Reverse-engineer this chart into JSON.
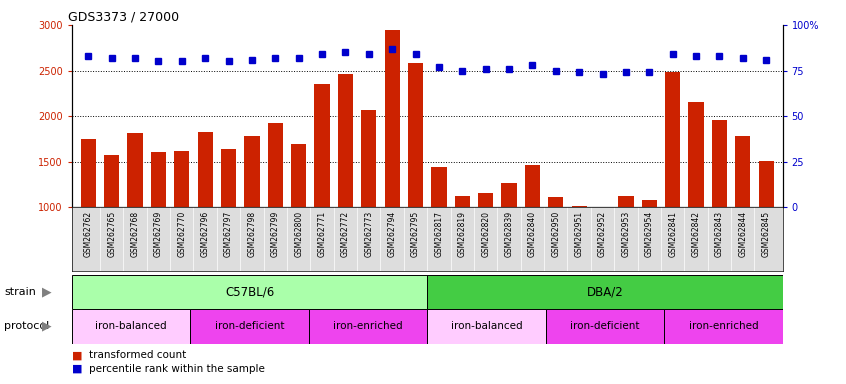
{
  "title": "GDS3373 / 27000",
  "samples": [
    "GSM262762",
    "GSM262765",
    "GSM262768",
    "GSM262769",
    "GSM262770",
    "GSM262796",
    "GSM262797",
    "GSM262798",
    "GSM262799",
    "GSM262800",
    "GSM262771",
    "GSM262772",
    "GSM262773",
    "GSM262794",
    "GSM262795",
    "GSM262817",
    "GSM262819",
    "GSM262820",
    "GSM262839",
    "GSM262840",
    "GSM262950",
    "GSM262951",
    "GSM262952",
    "GSM262953",
    "GSM262954",
    "GSM262841",
    "GSM262842",
    "GSM262843",
    "GSM262844",
    "GSM262845"
  ],
  "bar_values": [
    1750,
    1570,
    1810,
    1610,
    1620,
    1830,
    1640,
    1780,
    1920,
    1700,
    2350,
    2460,
    2070,
    2950,
    2580,
    1440,
    1130,
    1160,
    1270,
    1460,
    1110,
    1020,
    830,
    1130,
    1080,
    2480,
    2160,
    1960,
    1780,
    1510
  ],
  "percentile_values": [
    83,
    82,
    82,
    80,
    80,
    82,
    80,
    81,
    82,
    82,
    84,
    85,
    84,
    87,
    84,
    77,
    75,
    76,
    76,
    78,
    75,
    74,
    73,
    74,
    74,
    84,
    83,
    83,
    82,
    81
  ],
  "bar_color": "#cc2200",
  "percentile_color": "#0000cc",
  "ylim_left": [
    1000,
    3000
  ],
  "ylim_right": [
    0,
    100
  ],
  "yticks_left": [
    1000,
    1500,
    2000,
    2500,
    3000
  ],
  "yticks_right": [
    0,
    25,
    50,
    75,
    100
  ],
  "ytick_labels_right": [
    "0",
    "25",
    "50",
    "75",
    "100%"
  ],
  "grid_values": [
    1500,
    2000,
    2500
  ],
  "strain_groups": [
    {
      "label": "C57BL/6",
      "start": 0,
      "end": 15,
      "color": "#aaffaa"
    },
    {
      "label": "DBA/2",
      "start": 15,
      "end": 30,
      "color": "#44cc44"
    }
  ],
  "protocol_groups": [
    {
      "label": "iron-balanced",
      "start": 0,
      "end": 5,
      "color": "#ffccff"
    },
    {
      "label": "iron-deficient",
      "start": 5,
      "end": 10,
      "color": "#ee44ee"
    },
    {
      "label": "iron-enriched",
      "start": 10,
      "end": 15,
      "color": "#ee44ee"
    },
    {
      "label": "iron-balanced",
      "start": 15,
      "end": 20,
      "color": "#ffccff"
    },
    {
      "label": "iron-deficient",
      "start": 20,
      "end": 25,
      "color": "#ee44ee"
    },
    {
      "label": "iron-enriched",
      "start": 25,
      "end": 30,
      "color": "#ee44ee"
    }
  ],
  "tick_bg_color": "#dddddd",
  "legend_items": [
    {
      "label": "transformed count",
      "color": "#cc2200"
    },
    {
      "label": "percentile rank within the sample",
      "color": "#0000cc"
    }
  ]
}
